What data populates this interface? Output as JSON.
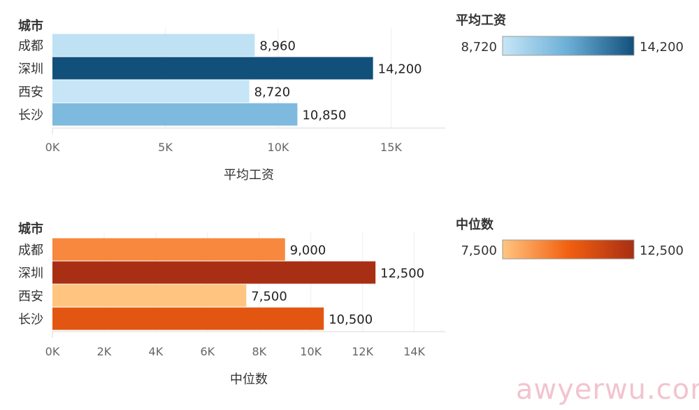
{
  "chart_data": [
    {
      "type": "bar",
      "orientation": "horizontal",
      "dimension_title": "城市",
      "categories": [
        "成都",
        "深圳",
        "西安",
        "长沙"
      ],
      "values": [
        8960,
        14200,
        8720,
        10850
      ],
      "value_labels": [
        "8,960",
        "14,200",
        "8,720",
        "10,850"
      ],
      "xlabel": "平均工资",
      "xlim": [
        0,
        17400
      ],
      "xticks": [
        0,
        5000,
        10000,
        15000
      ],
      "xtick_labels": [
        "0K",
        "5K",
        "10K",
        "15K"
      ],
      "grid": true,
      "color_scale": {
        "title": "平均工资",
        "min_label": "8,720",
        "max_label": "14,200",
        "min": 8720,
        "max": 14200,
        "colors": [
          "#c6e6f7",
          "#6aaed6",
          "#12507c"
        ]
      }
    },
    {
      "type": "bar",
      "orientation": "horizontal",
      "dimension_title": "城市",
      "categories": [
        "成都",
        "深圳",
        "西安",
        "长沙"
      ],
      "values": [
        9000,
        12500,
        7500,
        10500
      ],
      "value_labels": [
        "9,000",
        "12,500",
        "7,500",
        "10,500"
      ],
      "xlabel": "中位数",
      "xlim": [
        0,
        15200
      ],
      "xticks": [
        0,
        2000,
        4000,
        6000,
        8000,
        10000,
        12000,
        14000
      ],
      "xtick_labels": [
        "0K",
        "2K",
        "4K",
        "6K",
        "8K",
        "10K",
        "12K",
        "14K"
      ],
      "grid": true,
      "color_scale": {
        "title": "中位数",
        "min_label": "7,500",
        "max_label": "12,500",
        "min": 7500,
        "max": 12500,
        "colors": [
          "#ffc580",
          "#f26010",
          "#a82f14"
        ]
      }
    }
  ],
  "watermark": "awyerwu.com"
}
